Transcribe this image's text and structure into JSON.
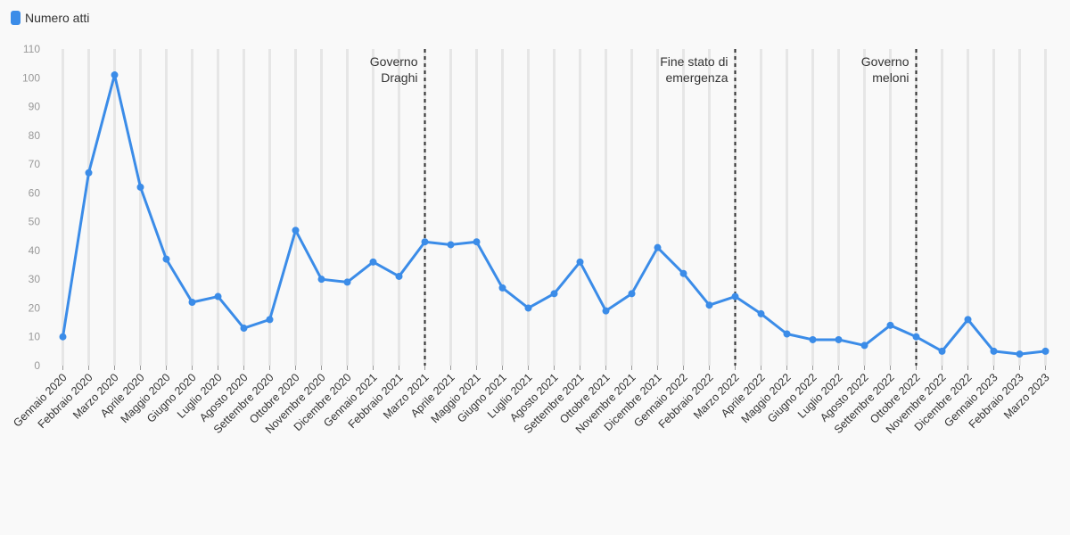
{
  "legend": {
    "label": "Numero atti",
    "color": "#3b8ce8"
  },
  "chart_data": {
    "type": "line",
    "title": "",
    "xlabel": "",
    "ylabel": "",
    "ylim": [
      0,
      110
    ],
    "yticks": [
      0,
      10,
      20,
      30,
      40,
      50,
      60,
      70,
      80,
      90,
      100,
      110
    ],
    "grid": "vertical",
    "legend_position": "top-left",
    "categories": [
      "Gennaio 2020",
      "Febbraio 2020",
      "Marzo 2020",
      "Aprile 2020",
      "Maggio 2020",
      "Giugno 2020",
      "Luglio 2020",
      "Agosto 2020",
      "Settembre 2020",
      "Ottobre 2020",
      "Novembre 2020",
      "Dicembre 2020",
      "Gennaio 2021",
      "Febbraio 2021",
      "Marzo 2021",
      "Aprile 2021",
      "Maggio 2021",
      "Giugno 2021",
      "Luglio 2021",
      "Agosto 2021",
      "Settembre 2021",
      "Ottobre 2021",
      "Novembre 2021",
      "Dicembre 2021",
      "Gennaio 2022",
      "Febbraio 2022",
      "Marzo 2022",
      "Aprile 2022",
      "Maggio 2022",
      "Giugno 2022",
      "Luglio 2022",
      "Agosto 2022",
      "Settembre 2022",
      "Ottobre 2022",
      "Novembre 2022",
      "Dicembre 2022",
      "Gennaio 2023",
      "Febbraio 2023",
      "Marzo 2023"
    ],
    "series": [
      {
        "name": "Numero atti",
        "color": "#3b8ce8",
        "values": [
          10,
          67,
          101,
          62,
          37,
          22,
          24,
          13,
          16,
          47,
          30,
          29,
          36,
          31,
          43,
          42,
          43,
          27,
          20,
          25,
          36,
          19,
          25,
          41,
          32,
          21,
          24,
          18,
          11,
          9,
          9,
          7,
          14,
          10,
          5,
          16,
          5,
          4,
          5
        ]
      }
    ],
    "annotations": [
      {
        "at": "Marzo 2021",
        "lines": [
          "Governo",
          "Draghi"
        ]
      },
      {
        "at": "Marzo 2022",
        "lines": [
          "Fine stato di",
          "emergenza"
        ]
      },
      {
        "at": "Ottobre 2022",
        "lines": [
          "Governo",
          "meloni"
        ]
      }
    ]
  }
}
